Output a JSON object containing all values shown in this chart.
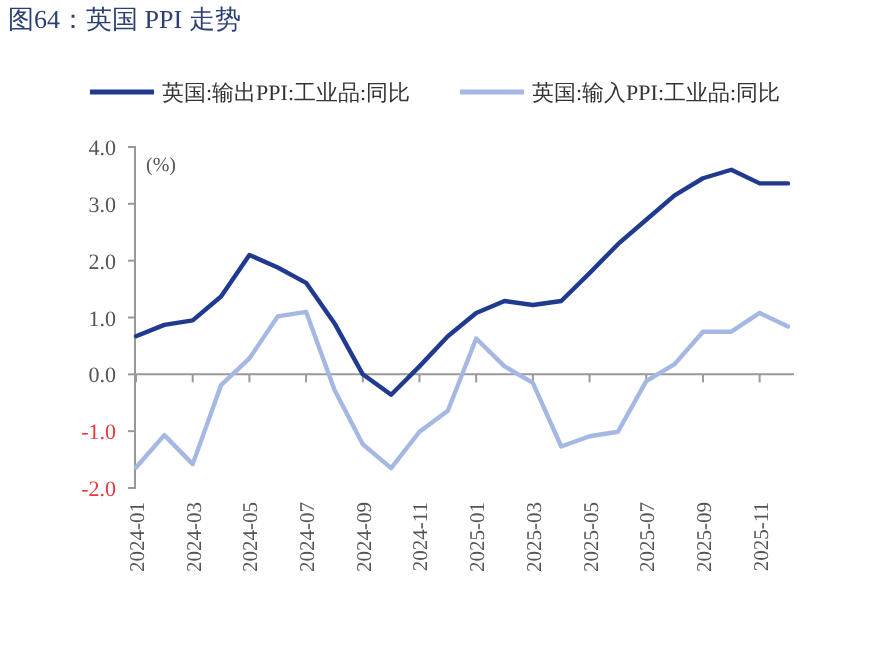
{
  "chart_data": {
    "type": "line",
    "title": "图64：英国 PPI 走势",
    "ylabel": "(%)",
    "categories": [
      "2024-01",
      null,
      "2024-03",
      null,
      "2024-05",
      null,
      "2024-07",
      null,
      "2024-09",
      null,
      "2024-11",
      null,
      "2025-01",
      null,
      "2025-03",
      null,
      "2025-05",
      null,
      "2025-07",
      null,
      "2025-09",
      null,
      "2025-11",
      null
    ],
    "series": [
      {
        "name": "英国:输出PPI:工业品:同比",
        "color": "#1f3a8f",
        "values": [
          0.67,
          0.87,
          0.95,
          1.37,
          2.1,
          1.88,
          1.61,
          0.9,
          0.0,
          -0.36,
          0.14,
          0.67,
          1.08,
          1.29,
          1.22,
          1.29,
          1.78,
          2.29,
          2.72,
          3.15,
          3.45,
          3.6,
          3.36,
          3.36
        ]
      },
      {
        "name": "英国:输入PPI:工业品:同比",
        "color": "#a5b8e3",
        "values": [
          -1.64,
          -1.07,
          -1.58,
          -0.19,
          0.28,
          1.02,
          1.1,
          -0.27,
          -1.23,
          -1.65,
          -1.01,
          -0.64,
          0.63,
          0.14,
          -0.15,
          -1.27,
          -1.09,
          -1.01,
          -0.12,
          0.18,
          0.75,
          0.75,
          1.08,
          0.84
        ]
      }
    ],
    "ylim": [
      -2,
      4
    ],
    "yticks": [
      {
        "value": 4,
        "label": "4.0"
      },
      {
        "value": 3,
        "label": "3.0"
      },
      {
        "value": 2,
        "label": "2.0"
      },
      {
        "value": 1,
        "label": "1.0"
      },
      {
        "value": 0,
        "label": "0.0"
      },
      {
        "value": -1,
        "label": "-1.0"
      },
      {
        "value": -2,
        "label": "-2.0"
      }
    ],
    "legend": "top",
    "marker": "none",
    "line_style": "solid"
  }
}
